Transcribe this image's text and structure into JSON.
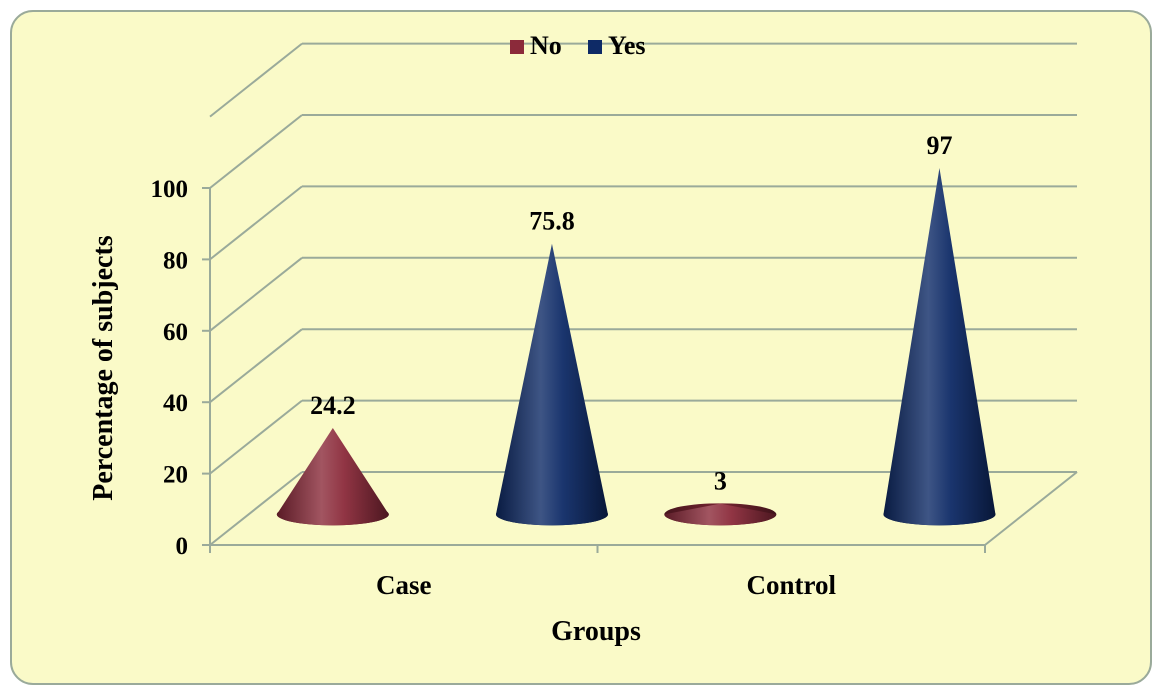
{
  "chart_data": {
    "type": "bar",
    "shape": "cone",
    "categories": [
      "Case",
      "Control"
    ],
    "series": [
      {
        "name": "No",
        "values": [
          24.2,
          3
        ],
        "labels": [
          "24.2",
          "3"
        ],
        "color": "#8b2a3a"
      },
      {
        "name": "Yes",
        "values": [
          75.8,
          97
        ],
        "labels": [
          "75.8",
          "97"
        ],
        "color": "#0e2a66"
      }
    ],
    "xlabel": "Groups",
    "ylabel": "Percentage of subjects",
    "ylim": [
      0,
      100
    ],
    "yticks": [
      "0",
      "20",
      "40",
      "60",
      "80",
      "100"
    ],
    "grid": true,
    "legend_position": "top-center",
    "background_color": "#fafac8",
    "border_color": "#9aaa9a"
  }
}
